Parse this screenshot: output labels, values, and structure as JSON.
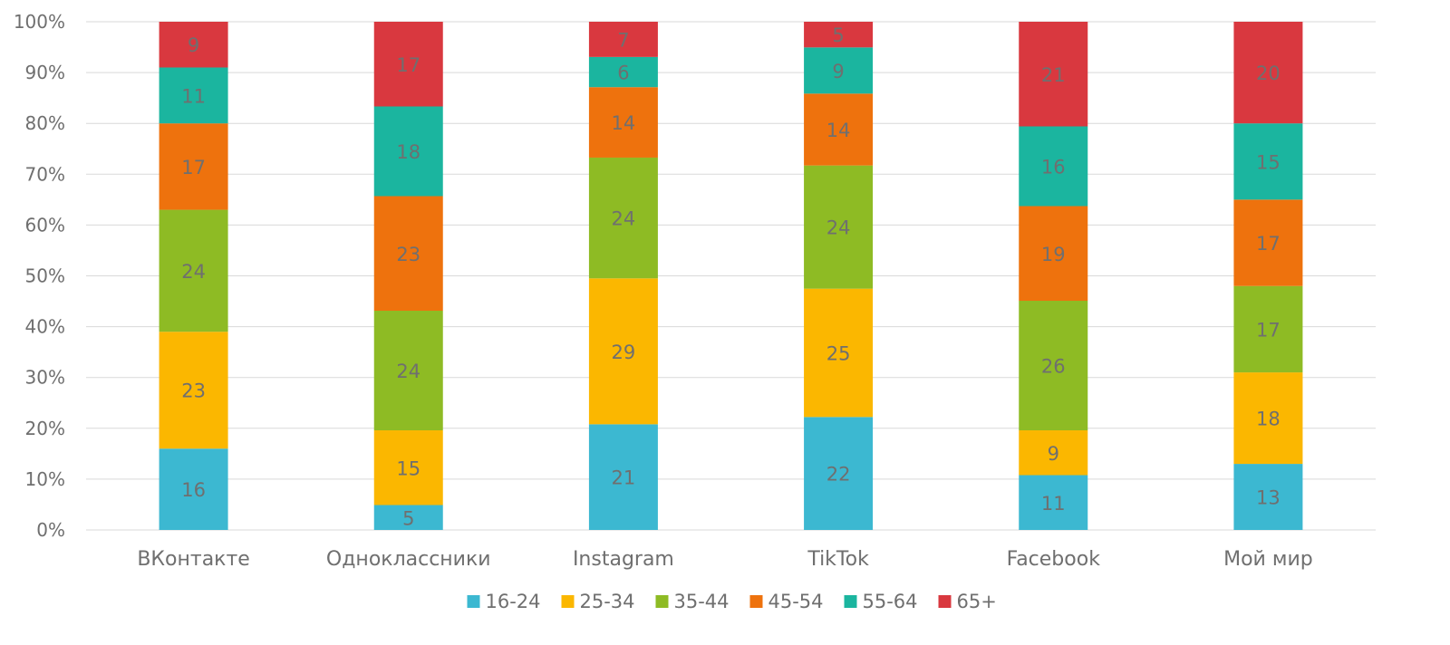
{
  "chart_data": {
    "type": "bar",
    "stacked": true,
    "percent_stacked": true,
    "categories": [
      "ВКонтакте",
      "Одноклассники",
      "Instagram",
      "TikTok",
      "Facebook",
      "Мой мир"
    ],
    "series": [
      {
        "name": "16-24",
        "color": "#3cb8d1",
        "values": [
          16,
          5,
          21,
          22,
          11,
          13
        ]
      },
      {
        "name": "25-34",
        "color": "#fbb700",
        "values": [
          23,
          15,
          29,
          25,
          9,
          18
        ]
      },
      {
        "name": "35-44",
        "color": "#8ebb24",
        "values": [
          24,
          24,
          24,
          24,
          26,
          17
        ]
      },
      {
        "name": "45-54",
        "color": "#ee720d",
        "values": [
          17,
          23,
          14,
          14,
          19,
          17
        ]
      },
      {
        "name": "55-64",
        "color": "#1bb59f",
        "values": [
          11,
          18,
          6,
          9,
          16,
          15
        ]
      },
      {
        "name": "65+",
        "color": "#d9383f",
        "values": [
          9,
          17,
          7,
          5,
          21,
          20
        ]
      }
    ],
    "y_axis": {
      "min": 0,
      "max": 100,
      "step": 10,
      "unit": "%",
      "tick_labels": [
        "0%",
        "10%",
        "20%",
        "30%",
        "40%",
        "50%",
        "60%",
        "70%",
        "80%",
        "90%",
        "100%"
      ]
    },
    "grid": true,
    "legend_position": "bottom",
    "data_labels": true
  }
}
